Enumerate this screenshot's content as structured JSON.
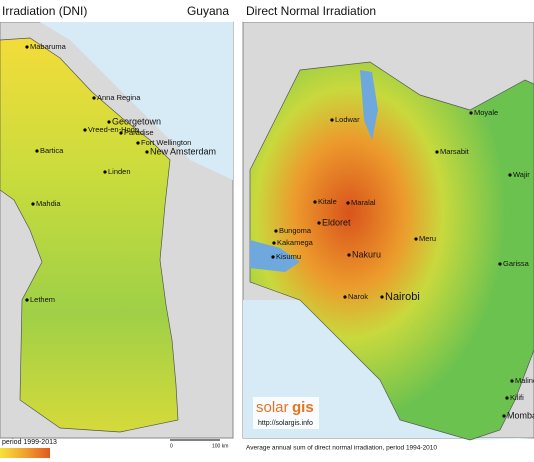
{
  "left_map": {
    "title": "Irradiation (DNI)",
    "country": "Guyana",
    "cities": [
      "Mabaruma",
      "Anna Regina",
      "Georgetown",
      "Vreed-en-Hoop",
      "Paradise",
      "Bartica",
      "Fort Wellington",
      "New Amsterdam",
      "Linden",
      "Mahdia",
      "Lethem"
    ],
    "footer": "period 1999-2013",
    "scale": [
      "0",
      "100 km"
    ]
  },
  "right_map": {
    "title": "Direct Normal Irradiation",
    "cities": [
      "Lodwar",
      "Moyale",
      "Marsabit",
      "Wajir",
      "Kitale",
      "Eldoret",
      "Bungoma",
      "Kakamega",
      "Maralal",
      "Kisumu",
      "Nakuru",
      "Meru",
      "Garissa",
      "Narok",
      "Nairobi",
      "Malindi",
      "Kilifi",
      "Momba"
    ],
    "logo": [
      "solar",
      "gis"
    ],
    "url": "http://solargis.info",
    "footer": "Average annual sum of direct normal irradiation, period 1994-2010"
  }
}
